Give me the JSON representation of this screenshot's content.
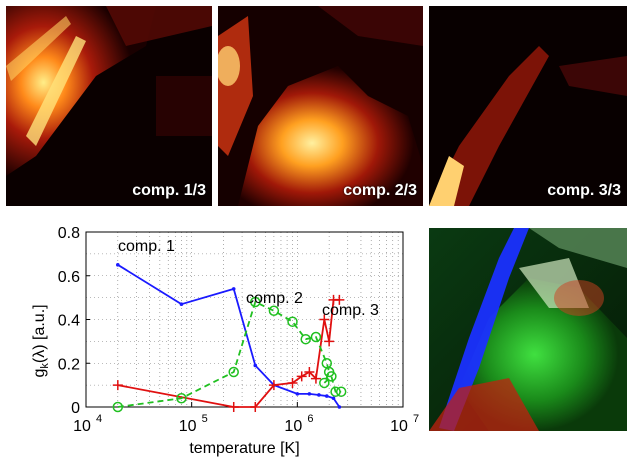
{
  "panels": [
    {
      "label": "comp. 1/3"
    },
    {
      "label": "comp. 2/3"
    },
    {
      "label": "comp. 3/3"
    }
  ],
  "chart_data": {
    "type": "line",
    "xlabel": "temperature [K]",
    "ylabel": "g_k(λ) [a.u.]",
    "xscale": "log",
    "xlim": [
      10000,
      10000000
    ],
    "ylim": [
      0,
      0.8
    ],
    "xticks": [
      "10^4",
      "10^5",
      "10^6",
      "10^7"
    ],
    "yticks": [
      "0",
      "0.2",
      "0.4",
      "0.6",
      "0.8"
    ],
    "grid": true,
    "annotations": [
      "comp. 1",
      "comp. 2",
      "comp. 3"
    ],
    "series": [
      {
        "color": "#1a1aff",
        "line": "solid",
        "marker": "dot",
        "x": [
          20000,
          80000,
          250000,
          400000,
          600000,
          1000000,
          1300000,
          1600000,
          1900000,
          2200000,
          2500000
        ],
        "y": [
          0.65,
          0.47,
          0.54,
          0.19,
          0.1,
          0.06,
          0.06,
          0.055,
          0.05,
          0.04,
          0.0
        ]
      },
      {
        "color": "#e01010",
        "line": "solid",
        "marker": "plus",
        "x": [
          20000,
          250000,
          400000,
          600000,
          900000,
          1100000,
          1300000,
          1500000,
          1800000,
          2000000,
          2200000,
          2500000
        ],
        "y": [
          0.1,
          0.0,
          0.0,
          0.1,
          0.11,
          0.14,
          0.16,
          0.13,
          0.4,
          0.3,
          0.49,
          0.49
        ]
      },
      {
        "color": "#20c020",
        "line": "dashed",
        "marker": "circle",
        "x": [
          20000,
          80000,
          250000,
          400000,
          600000,
          900000,
          1200000,
          1500000,
          1900000,
          2000000,
          1800000,
          2100000,
          2300000,
          2600000
        ],
        "y": [
          0.0,
          0.04,
          0.16,
          0.48,
          0.44,
          0.39,
          0.31,
          0.32,
          0.2,
          0.16,
          0.11,
          0.14,
          0.07,
          0.07
        ]
      }
    ]
  },
  "colors": {
    "comp1": "#1a1aff",
    "comp2": "#20c020",
    "comp3": "#e01010"
  }
}
